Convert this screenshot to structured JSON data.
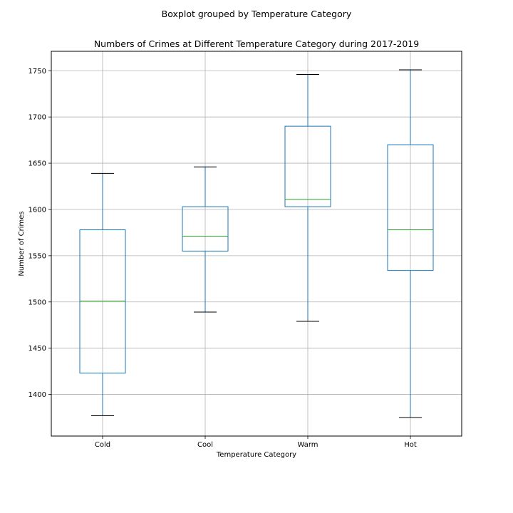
{
  "chart_data": {
    "type": "boxplot",
    "suptitle": "Boxplot grouped by Temperature Category",
    "title": "Numbers of Crimes at Different Temperature Category during 2017-2019",
    "xlabel": "Temperature Category",
    "ylabel": "Number of Crimes",
    "ylim": [
      1355,
      1771
    ],
    "yticks": [
      1400,
      1450,
      1500,
      1550,
      1600,
      1650,
      1700,
      1750
    ],
    "grid": true,
    "colors": {
      "box": "#1f77b4",
      "median": "#2ca02c",
      "cap": "#000000",
      "grid": "#b0b0b0"
    },
    "categories": [
      "Cold",
      "Cool",
      "Warm",
      "Hot"
    ],
    "boxes": [
      {
        "category": "Cold",
        "whislo": 1377,
        "q1": 1423,
        "med": 1501,
        "q3": 1578,
        "whishi": 1639
      },
      {
        "category": "Cool",
        "whislo": 1489,
        "q1": 1555,
        "med": 1571,
        "q3": 1603,
        "whishi": 1646
      },
      {
        "category": "Warm",
        "whislo": 1479,
        "q1": 1603,
        "med": 1611,
        "q3": 1690,
        "whishi": 1746
      },
      {
        "category": "Hot",
        "whislo": 1375,
        "q1": 1534,
        "med": 1578,
        "q3": 1670,
        "whishi": 1751
      }
    ]
  }
}
